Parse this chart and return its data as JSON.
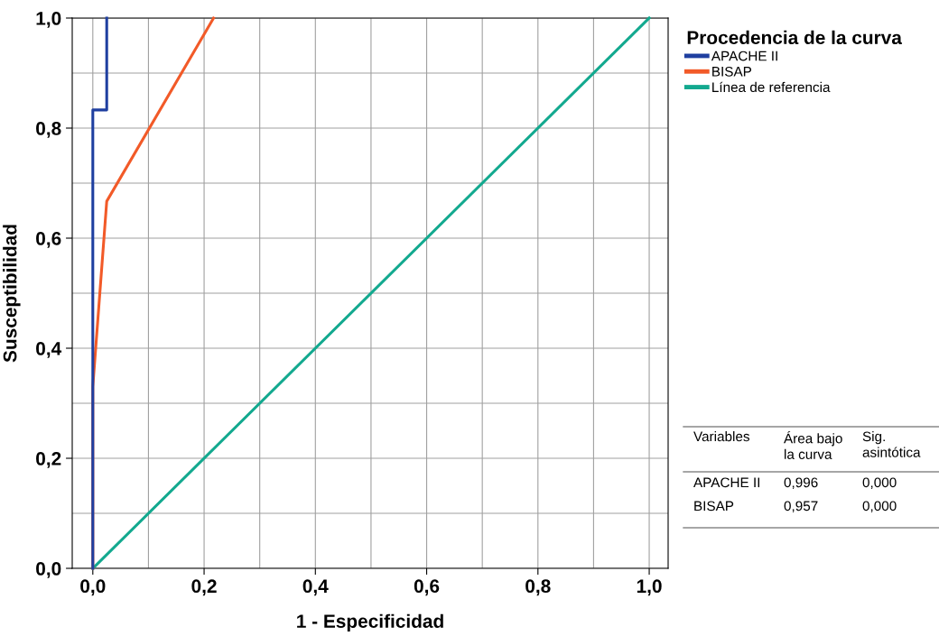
{
  "chart_data": {
    "type": "line",
    "xlabel": "1 - Especificidad",
    "ylabel": "Susceptibilidad",
    "legend_title": "Procedencia de la curva",
    "legend": "right",
    "series": [
      {
        "name": "APACHE II",
        "color": "#1f3fa0",
        "x": [
          0,
          0,
          0.025,
          0.025
        ],
        "values": [
          0,
          0.833,
          0.833,
          1.0
        ]
      },
      {
        "name": "BISAP",
        "color": "#f25a28",
        "x": [
          0,
          0,
          0.025,
          0.217
        ],
        "values": [
          0,
          0.33,
          0.667,
          1.0
        ]
      },
      {
        "name": "Línea de referencia",
        "color": "#13a98f",
        "x": [
          0,
          1
        ],
        "values": [
          0,
          1
        ]
      }
    ],
    "xlim": [
      -0.037,
      1.034
    ],
    "ylim": [
      0,
      1
    ],
    "xticks": [
      {
        "value": 0.0,
        "label": "0,0"
      },
      {
        "value": 0.1,
        "label": null
      },
      {
        "value": 0.2,
        "label": "0,2"
      },
      {
        "value": 0.3,
        "label": null
      },
      {
        "value": 0.4,
        "label": "0,4"
      },
      {
        "value": 0.5,
        "label": null
      },
      {
        "value": 0.6,
        "label": "0,6"
      },
      {
        "value": 0.7,
        "label": null
      },
      {
        "value": 0.8,
        "label": "0,8"
      },
      {
        "value": 0.9,
        "label": null
      },
      {
        "value": 1.0,
        "label": "1,0"
      }
    ],
    "yticks": [
      {
        "value": 0.0,
        "label": "0,0"
      },
      {
        "value": 0.1,
        "label": null
      },
      {
        "value": 0.2,
        "label": "0,2"
      },
      {
        "value": 0.3,
        "label": null
      },
      {
        "value": 0.4,
        "label": "0,4"
      },
      {
        "value": 0.5,
        "label": null
      },
      {
        "value": 0.6,
        "label": "0,6"
      },
      {
        "value": 0.7,
        "label": null
      },
      {
        "value": 0.8,
        "label": "0,8"
      },
      {
        "value": 0.9,
        "label": null
      },
      {
        "value": 1.0,
        "label": "1,0"
      }
    ],
    "grid": true,
    "marker": "none",
    "line_style": "solid",
    "annotations": [
      "Variables",
      "Área bajo\nla curva",
      "Sig.\nasintótica",
      "APACHE II",
      "0,996",
      "0,000",
      "BISAP",
      "0,957",
      "0,000"
    ]
  }
}
